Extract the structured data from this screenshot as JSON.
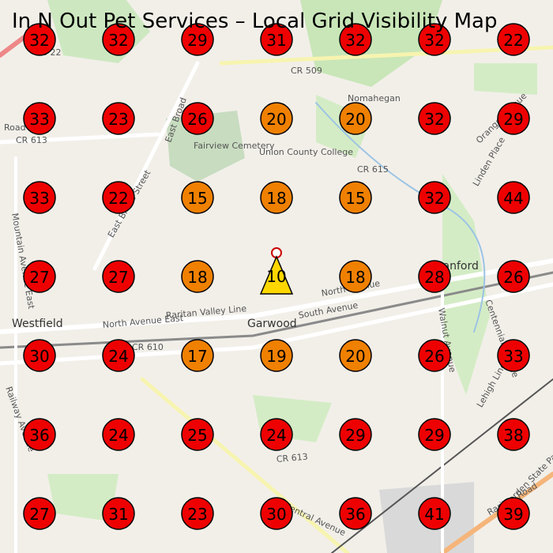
{
  "title": "In N Out Pet Services – Local Grid Visibility Map",
  "grid": {
    "rows": [
      [
        32,
        32,
        29,
        31,
        32,
        32,
        22
      ],
      [
        33,
        23,
        26,
        20,
        20,
        32,
        29
      ],
      [
        33,
        22,
        15,
        18,
        15,
        32,
        44
      ],
      [
        27,
        27,
        18,
        10,
        18,
        28,
        26
      ],
      [
        30,
        24,
        17,
        19,
        20,
        26,
        33
      ],
      [
        36,
        24,
        25,
        24,
        29,
        29,
        38
      ],
      [
        27,
        31,
        23,
        30,
        36,
        41,
        39
      ]
    ],
    "colors": [
      [
        "#e00",
        "#e00",
        "#e00",
        "#e00",
        "#e00",
        "#e00",
        "#e00"
      ],
      [
        "#e00",
        "#e00",
        "#e00",
        "#f08000",
        "#f08000",
        "#e00",
        "#e00"
      ],
      [
        "#e00",
        "#e00",
        "#f08000",
        "#f08000",
        "#f08000",
        "#e00",
        "#e00"
      ],
      [
        "#e00",
        "#e00",
        "#f08000",
        "#ffd700",
        "#f08000",
        "#e00",
        "#e00"
      ],
      [
        "#e00",
        "#e00",
        "#f08000",
        "#f08000",
        "#f08000",
        "#e00",
        "#e00"
      ],
      [
        "#e00",
        "#e00",
        "#e00",
        "#e00",
        "#e00",
        "#e00",
        "#e00"
      ],
      [
        "#e00",
        "#e00",
        "#e00",
        "#e00",
        "#e00",
        "#e00",
        "#e00"
      ]
    ]
  },
  "map_labels": [
    "US 22",
    "CR 509",
    "CR 613",
    "Road",
    "Fairview Cemetery",
    "Union County College",
    "Nomahegan",
    "CR 615",
    "East Broad",
    "East Broad Street",
    "Mountain Avenue East",
    "Linden Place",
    "Orange Avenue",
    "Westfield",
    "North Avenue East",
    "Raritan Valley Line",
    "Garwood",
    "South Avenue",
    "North Avenue",
    "CR 610",
    "Cranford",
    "Centennial Avenue",
    "Walnut Avenue",
    "Lehigh Line",
    "Railway Avenue",
    "CR 613",
    "Central Avenue",
    "Raritan Road",
    "Garden State Parkway"
  ]
}
